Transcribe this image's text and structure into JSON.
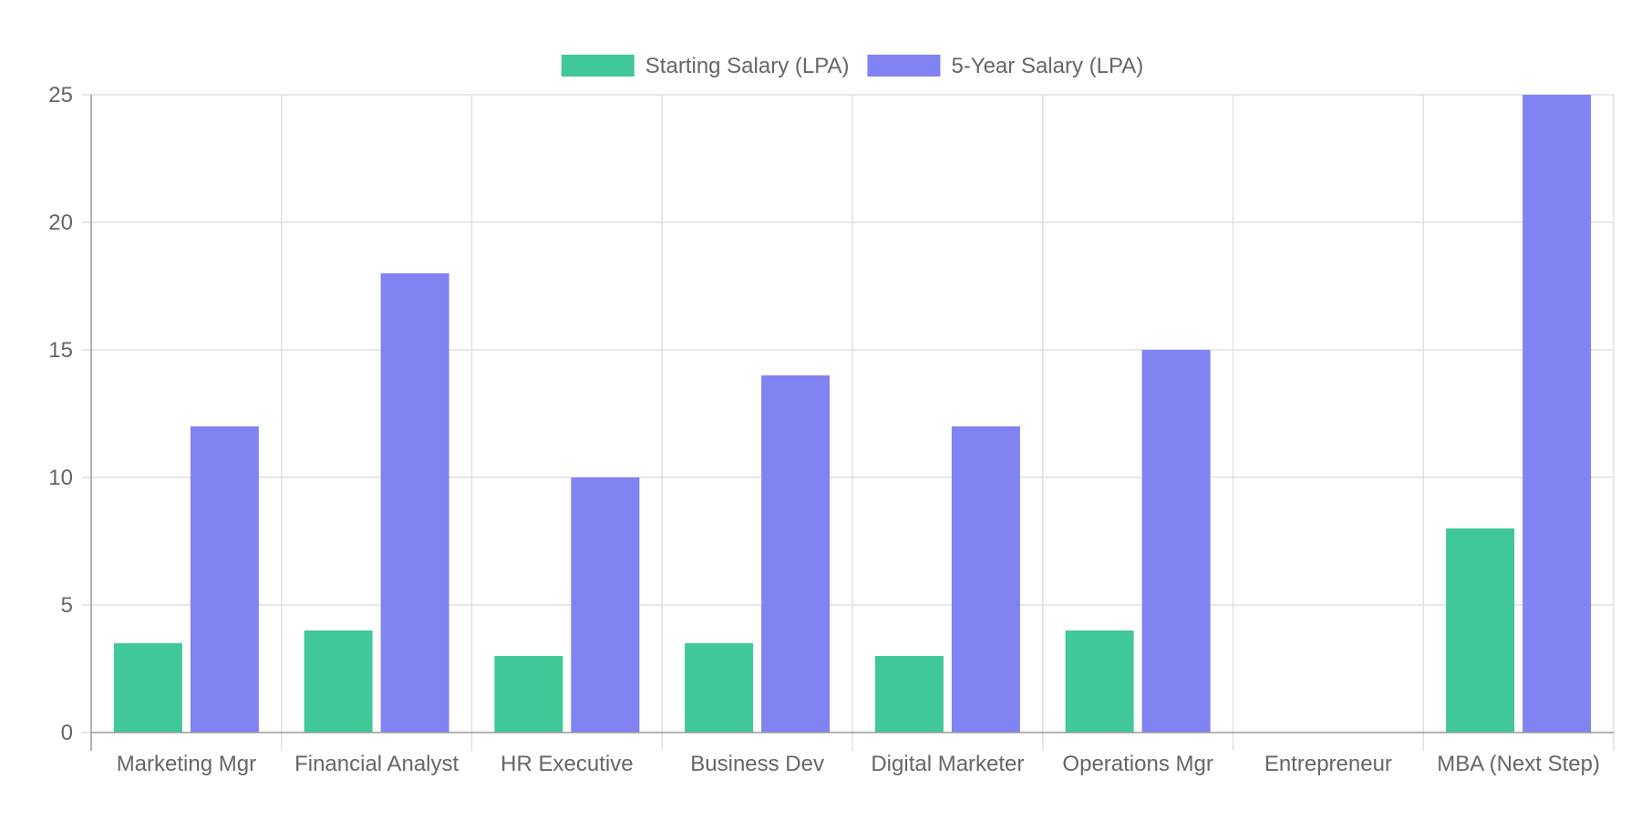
{
  "chart_data": {
    "type": "bar",
    "title": "",
    "xlabel": "",
    "ylabel": "",
    "categories": [
      "Marketing Mgr",
      "Financial Analyst",
      "HR Executive",
      "Business Dev",
      "Digital Marketer",
      "Operations Mgr",
      "Entrepreneur",
      "MBA (Next Step)"
    ],
    "series": [
      {
        "name": "Starting Salary (LPA)",
        "color": "#40C898",
        "values": [
          3.5,
          4,
          3,
          3.5,
          3,
          4,
          null,
          8
        ]
      },
      {
        "name": "5-Year Salary (LPA)",
        "color": "#8083F1",
        "values": [
          12,
          18,
          10,
          14,
          12,
          15,
          null,
          25
        ]
      }
    ],
    "ylim": [
      0,
      25
    ],
    "yticks": [
      0,
      5,
      10,
      15,
      20,
      25
    ],
    "grid": true,
    "legend_position": "top-center"
  }
}
